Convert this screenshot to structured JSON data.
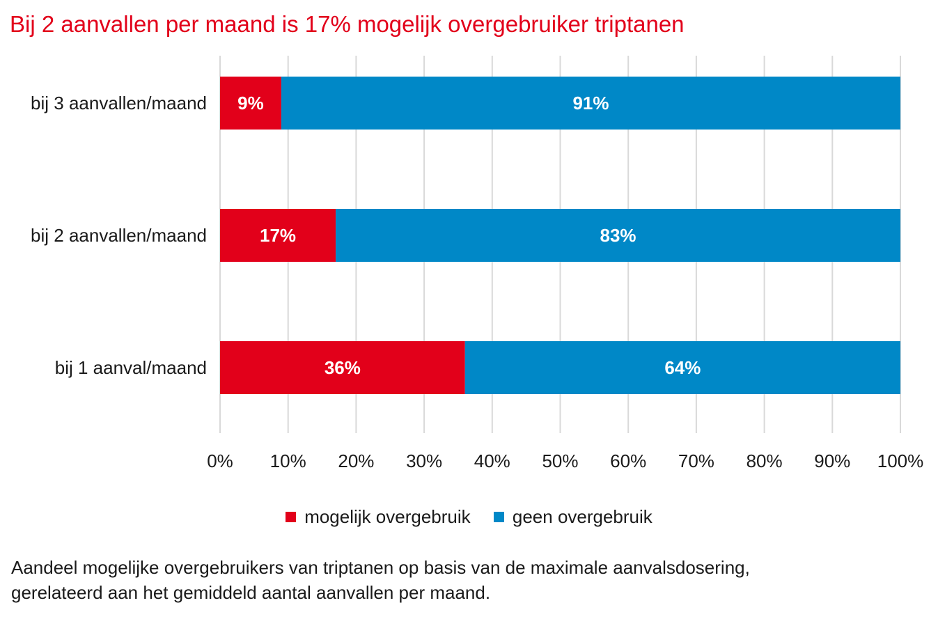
{
  "title": "Bij 2 aanvallen per maand is 17% mogelijk overgebruiker triptanen",
  "chart_data": {
    "type": "bar",
    "orientation": "horizontal",
    "stacked": true,
    "categories": [
      "bij 3 aanvallen/maand",
      "bij 2 aanvallen/maand",
      "bij 1 aanval/maand"
    ],
    "series": [
      {
        "name": "mogelijk overgebruik",
        "color": "#e2001a",
        "values": [
          9,
          17,
          36
        ],
        "labels": [
          "9%",
          "17%",
          "36%"
        ]
      },
      {
        "name": "geen overgebruik",
        "color": "#0088c7",
        "values": [
          91,
          83,
          64
        ],
        "labels": [
          "91%",
          "83%",
          "64%"
        ]
      }
    ],
    "xlim": [
      0,
      100
    ],
    "xticks": [
      "0%",
      "10%",
      "20%",
      "30%",
      "40%",
      "50%",
      "60%",
      "70%",
      "80%",
      "90%",
      "100%"
    ],
    "grid": true,
    "legend_position": "bottom"
  },
  "caption": {
    "line1": "Aandeel mogelijke overgebruikers van triptanen op basis van de maximale aanvalsdosering,",
    "line2": "gerelateerd aan het gemiddeld aantal aanvallen per maand."
  }
}
